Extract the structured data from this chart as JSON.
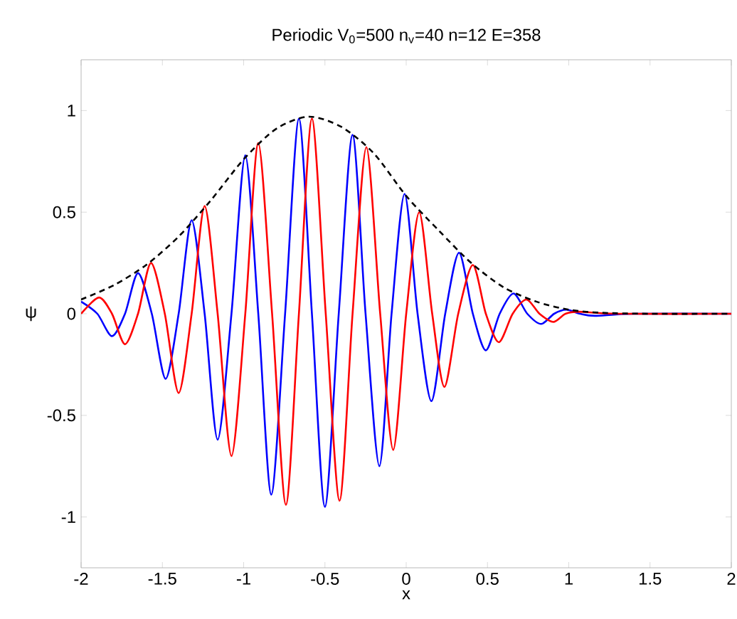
{
  "chart_data": {
    "type": "line",
    "title": "Periodic V$_{0}$=500 n$_{v}$=40 n=12 E=358",
    "xlabel": "x",
    "ylabel": "ψ",
    "xlim": [
      -2,
      2
    ],
    "ylim": [
      -1.25,
      1.25
    ],
    "xticks": [
      -2,
      -1.5,
      -1,
      -0.5,
      0,
      0.5,
      1,
      1.5,
      2
    ],
    "yticks": [
      -1,
      -0.5,
      0,
      0.5,
      1
    ],
    "grid": false,
    "marker": "none",
    "series": [
      {
        "color": "#0000ff",
        "line_style": "solid",
        "x": [
          -2,
          -1.9,
          -1.81,
          -1.73,
          -1.65,
          -1.565,
          -1.48,
          -1.4,
          -1.32,
          -1.24,
          -1.16,
          -1.075,
          -0.99,
          -0.91,
          -0.83,
          -0.745,
          -0.66,
          -0.58,
          -0.5,
          -0.415,
          -0.33,
          -0.25,
          -0.165,
          -0.09,
          -0.01,
          0.07,
          0.155,
          0.24,
          0.325,
          0.41,
          0.49,
          0.575,
          0.66,
          0.745,
          0.83,
          0.91,
          0.985,
          1.07,
          1.16,
          1.4,
          2
        ],
        "values": [
          0.06,
          0,
          -0.11,
          0,
          0.2,
          0,
          -0.32,
          0,
          0.46,
          0,
          -0.62,
          0,
          0.78,
          0,
          -0.89,
          0,
          0.96,
          0,
          -0.95,
          0,
          0.88,
          0,
          -0.75,
          0,
          0.59,
          0,
          -0.43,
          0,
          0.3,
          0,
          -0.18,
          0,
          0.1,
          0,
          -0.05,
          0,
          0.02,
          0,
          -0.01,
          0,
          0
        ]
      },
      {
        "color": "#ff0000",
        "line_style": "solid",
        "x": [
          -2,
          -1.89,
          -1.81,
          -1.73,
          -1.65,
          -1.57,
          -1.485,
          -1.4,
          -1.32,
          -1.24,
          -1.16,
          -1.075,
          -0.99,
          -0.91,
          -0.825,
          -0.74,
          -0.66,
          -0.58,
          -0.495,
          -0.41,
          -0.33,
          -0.245,
          -0.16,
          -0.08,
          0,
          0.08,
          0.16,
          0.235,
          0.32,
          0.41,
          0.49,
          0.57,
          0.655,
          0.74,
          0.82,
          0.905,
          0.98,
          1.06,
          1.3,
          2
        ],
        "values": [
          0,
          0.08,
          0,
          -0.15,
          0,
          0.25,
          0,
          -0.39,
          0,
          0.53,
          0,
          -0.7,
          0,
          0.84,
          0,
          -0.94,
          0,
          0.96,
          0,
          -0.92,
          0,
          0.82,
          0,
          -0.67,
          0,
          0.5,
          0,
          -0.36,
          0,
          0.24,
          0,
          -0.14,
          0,
          0.07,
          0,
          -0.04,
          0,
          0.01,
          0,
          0
        ]
      },
      {
        "color": "#000000",
        "line_style": "dashed",
        "x": [
          -2,
          -1.8,
          -1.6,
          -1.4,
          -1.2,
          -1,
          -0.8,
          -0.6,
          -0.4,
          -0.2,
          0,
          0.2,
          0.4,
          0.6,
          0.8,
          1,
          1.2,
          1.5,
          2
        ],
        "values": [
          0.07,
          0.14,
          0.24,
          0.38,
          0.56,
          0.76,
          0.91,
          0.97,
          0.92,
          0.79,
          0.58,
          0.41,
          0.25,
          0.13,
          0.06,
          0.02,
          0.005,
          0,
          0
        ]
      }
    ]
  }
}
